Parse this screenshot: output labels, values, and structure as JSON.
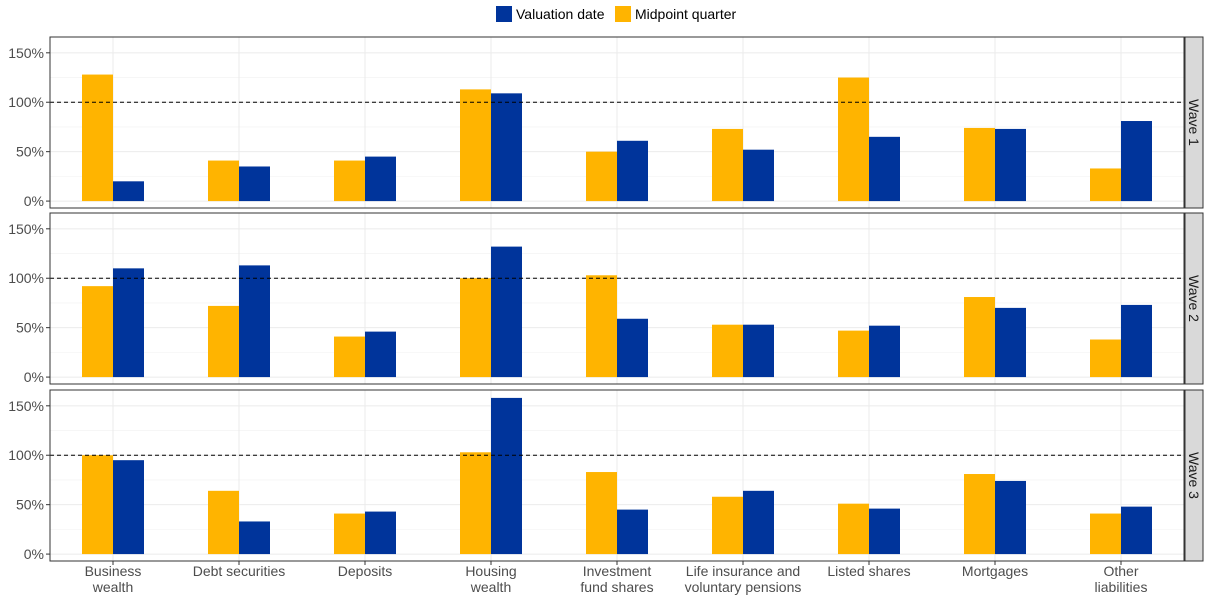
{
  "chart_data": {
    "type": "bar",
    "facet": "rows",
    "legend_position": "top",
    "grid": true,
    "ylim": [
      -0.07,
      1.66
    ],
    "yticks": [
      0,
      0.5,
      1,
      1.5
    ],
    "ytick_labels": [
      "0%",
      "50%",
      "100%",
      "150%"
    ],
    "reference_line": 1.0,
    "colors": {
      "Valuation date": "#00349b",
      "Midpoint quarter": "#ffb400"
    },
    "legend": [
      "Valuation date",
      "Midpoint quarter"
    ],
    "categories": [
      [
        "Business",
        "wealth"
      ],
      [
        "Debt securities"
      ],
      [
        "Deposits"
      ],
      [
        "Housing",
        "wealth"
      ],
      [
        "Investment",
        "fund shares"
      ],
      [
        "Life insurance and",
        "voluntary pensions"
      ],
      [
        "Listed shares"
      ],
      [
        "Mortgages"
      ],
      [
        "Other",
        "liabilities"
      ]
    ],
    "panels": [
      {
        "label": "Wave 1",
        "series": [
          {
            "name": "Midpoint quarter",
            "values": [
              1.28,
              0.41,
              0.41,
              1.13,
              0.5,
              0.73,
              1.25,
              0.74,
              0.33
            ]
          },
          {
            "name": "Valuation date",
            "values": [
              0.2,
              0.35,
              0.45,
              1.09,
              0.61,
              0.52,
              0.65,
              0.73,
              0.81
            ]
          }
        ]
      },
      {
        "label": "Wave 2",
        "series": [
          {
            "name": "Midpoint quarter",
            "values": [
              0.92,
              0.72,
              0.41,
              1.0,
              1.03,
              0.53,
              0.47,
              0.81,
              0.38
            ]
          },
          {
            "name": "Valuation date",
            "values": [
              1.1,
              1.13,
              0.46,
              1.32,
              0.59,
              0.53,
              0.52,
              0.7,
              0.73
            ]
          }
        ]
      },
      {
        "label": "Wave 3",
        "series": [
          {
            "name": "Midpoint quarter",
            "values": [
              1.0,
              0.64,
              0.41,
              1.03,
              0.83,
              0.58,
              0.51,
              0.81,
              0.41
            ]
          },
          {
            "name": "Valuation date",
            "values": [
              0.95,
              0.33,
              0.43,
              1.58,
              0.45,
              0.64,
              0.46,
              0.74,
              0.48
            ]
          }
        ]
      }
    ]
  }
}
